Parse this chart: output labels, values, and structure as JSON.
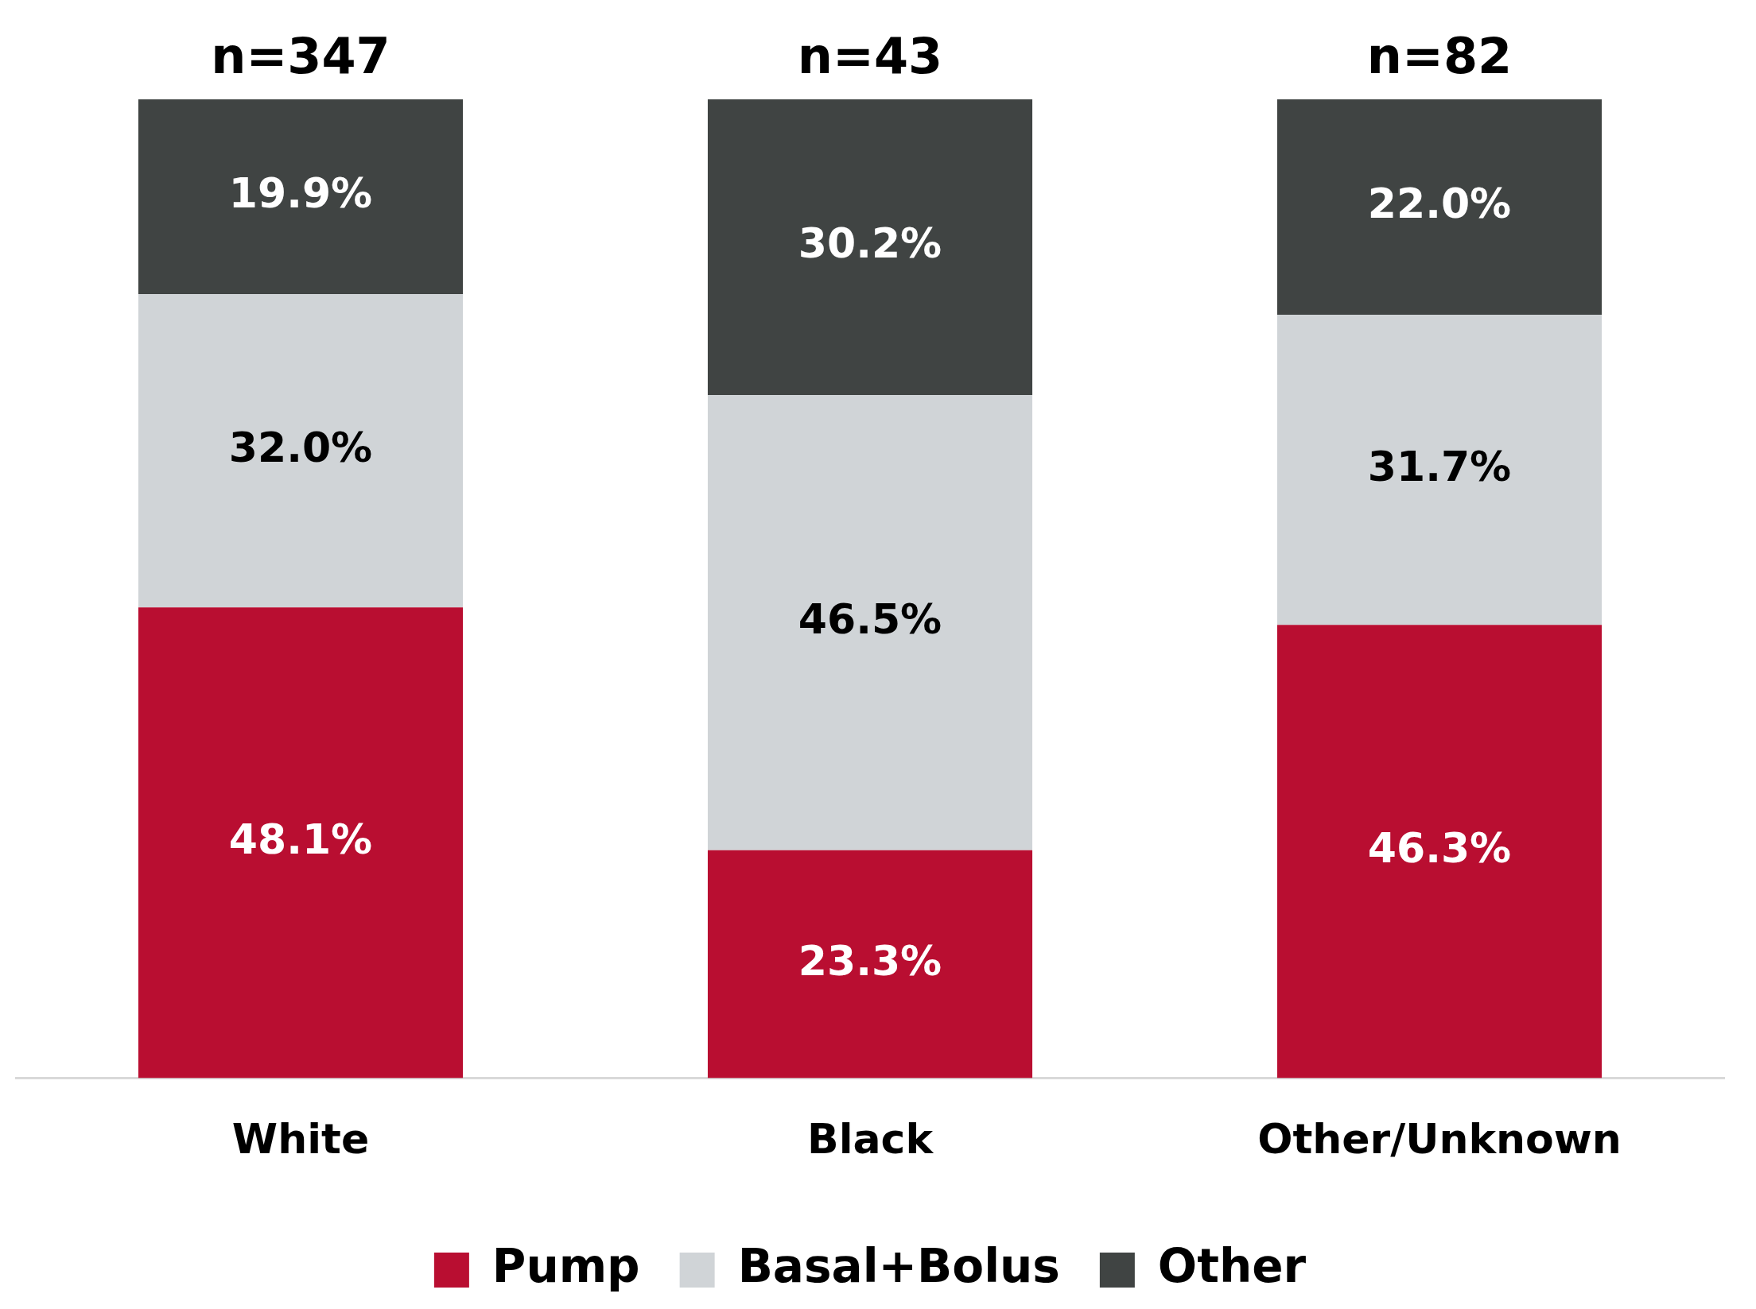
{
  "chart_data": {
    "type": "bar",
    "stacked": true,
    "categories": [
      "White",
      "Black",
      "Other/Unknown"
    ],
    "series": [
      {
        "name": "Pump",
        "color": "#b90e31",
        "values": [
          48.1,
          23.3,
          46.3
        ],
        "value_labels": [
          "48.1%",
          "23.3%",
          "46.3%"
        ]
      },
      {
        "name": "Basal+Bolus",
        "color": "#d0d4d7",
        "values": [
          32.0,
          46.5,
          31.7
        ],
        "value_labels": [
          "32.0%",
          "46.5%",
          "31.7%"
        ]
      },
      {
        "name": "Other",
        "color": "#404443",
        "values": [
          19.9,
          30.2,
          22.0
        ],
        "value_labels": [
          "19.9%",
          "30.2%",
          "22.0%"
        ]
      }
    ],
    "tick_labels": "x",
    "legend": "bottom",
    "annotations": [
      "n=347",
      "n=43",
      "n=82"
    ]
  }
}
